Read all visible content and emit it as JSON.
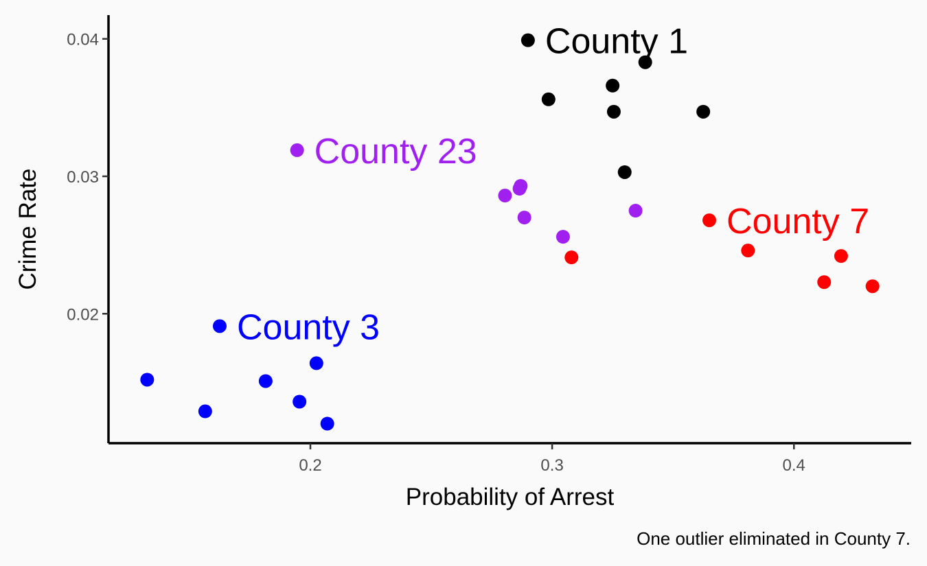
{
  "chart_data": {
    "type": "scatter",
    "xlabel": "Probability of Arrest",
    "ylabel": "Crime Rate",
    "caption": "One outlier eliminated in County 7.",
    "xlim": [
      0.1165,
      0.4485
    ],
    "ylim": [
      0.01058,
      0.04173
    ],
    "x_ticks": [
      0.2,
      0.3,
      0.4
    ],
    "x_tick_labels": [
      "0.2",
      "0.3",
      "0.4"
    ],
    "y_ticks": [
      0.02,
      0.03,
      0.04
    ],
    "y_tick_labels": [
      "0.02",
      "0.03",
      "0.04"
    ],
    "grid": false,
    "legend": "none",
    "series": [
      {
        "label": "County 1",
        "color": "#000000",
        "label_at": [
          0.29,
          0.0399
        ],
        "points": [
          [
            0.29,
            0.0399
          ],
          [
            0.3385,
            0.0383
          ],
          [
            0.325,
            0.0366
          ],
          [
            0.2985,
            0.0356
          ],
          [
            0.3255,
            0.0347
          ],
          [
            0.3625,
            0.0347
          ],
          [
            0.33,
            0.0303
          ]
        ]
      },
      {
        "label": "County 23",
        "color": "#A020F0",
        "label_at": [
          0.1945,
          0.0319
        ],
        "points": [
          [
            0.1945,
            0.0319
          ],
          [
            0.287,
            0.0293
          ],
          [
            0.2865,
            0.0291
          ],
          [
            0.2805,
            0.0286
          ],
          [
            0.3345,
            0.0275
          ],
          [
            0.2885,
            0.027
          ],
          [
            0.3045,
            0.0256
          ]
        ]
      },
      {
        "label": "County 7",
        "color": "#FF0000",
        "label_at": [
          0.365,
          0.0268
        ],
        "points": [
          [
            0.365,
            0.0268
          ],
          [
            0.381,
            0.0246
          ],
          [
            0.4195,
            0.0242
          ],
          [
            0.308,
            0.0241
          ],
          [
            0.4125,
            0.0223
          ],
          [
            0.4325,
            0.022
          ]
        ]
      },
      {
        "label": "County 3",
        "color": "#0000FF",
        "label_at": [
          0.1625,
          0.0191
        ],
        "points": [
          [
            0.1625,
            0.0191
          ],
          [
            0.2025,
            0.0164
          ],
          [
            0.1325,
            0.0152
          ],
          [
            0.1815,
            0.0151
          ],
          [
            0.1955,
            0.0136
          ],
          [
            0.1565,
            0.0129
          ],
          [
            0.207,
            0.012
          ]
        ]
      }
    ]
  }
}
